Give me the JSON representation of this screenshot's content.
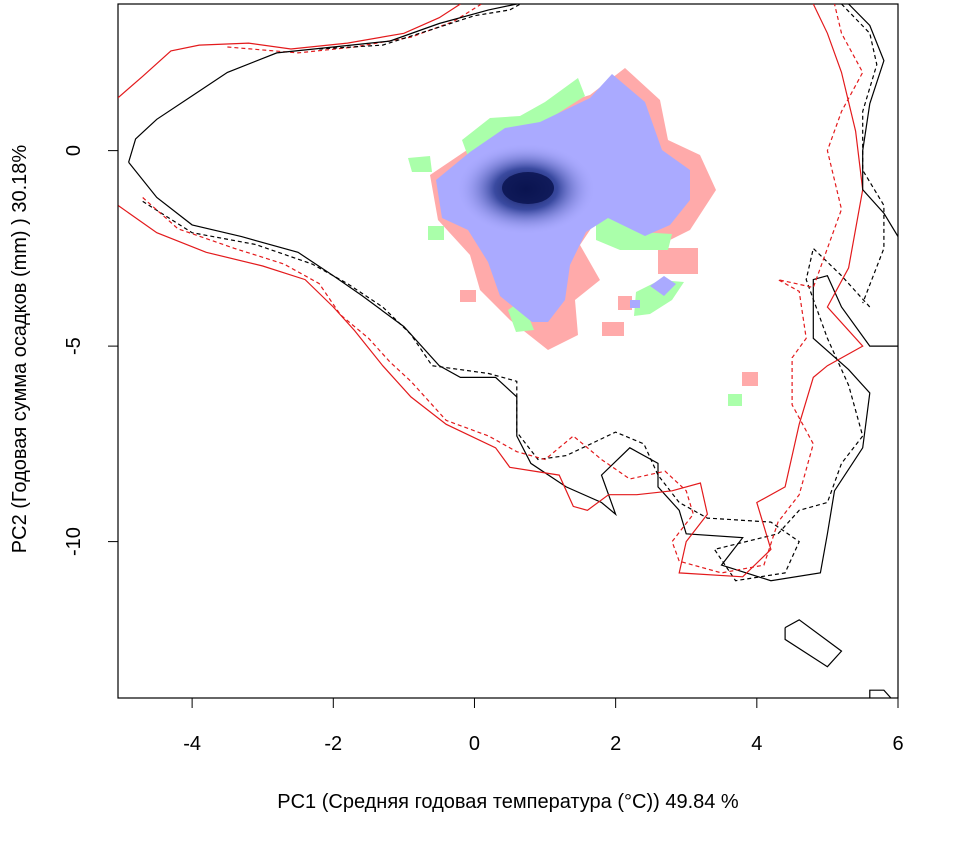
{
  "chart_data": {
    "type": "contour-density",
    "xlabel": "PC1 (Средняя годовая температура (°C)) 49.84 %",
    "ylabel": "PC2 (Годовая сумма осадков  (mm) ) 30.18%",
    "xlim": [
      -5.05,
      6.0
    ],
    "ylim": [
      -14.0,
      3.75
    ],
    "x_ticks": [
      -4,
      -2,
      0,
      2,
      4,
      6
    ],
    "y_ticks": [
      0,
      -5,
      -10
    ],
    "x_tick_labels": [
      "-4",
      "-2",
      "0",
      "2",
      "4",
      "6"
    ],
    "y_tick_labels": [
      "0",
      "-5",
      "-10"
    ],
    "colors": {
      "red": "#e31a1c",
      "black": "#000000",
      "pink": "#ffaaaa",
      "green": "#aaffaa",
      "blue": "#aaaaff",
      "density_core": "#0a1450"
    },
    "series": [
      {
        "color": "red",
        "dash": "solid",
        "points": [
          [
            -5.05,
            1.35
          ],
          [
            -4.7,
            1.9
          ],
          [
            -4.3,
            2.55
          ],
          [
            -3.9,
            2.7
          ],
          [
            -3.2,
            2.75
          ],
          [
            -2.6,
            2.6
          ],
          [
            -1.8,
            2.75
          ],
          [
            -1.0,
            3.0
          ],
          [
            -0.5,
            3.4
          ],
          [
            -0.2,
            3.75
          ]
        ]
      },
      {
        "color": "red",
        "dash": "dashed",
        "points": [
          [
            -3.5,
            2.65
          ],
          [
            -2.5,
            2.5
          ],
          [
            -1.7,
            2.65
          ],
          [
            -0.9,
            2.9
          ],
          [
            -0.3,
            3.3
          ],
          [
            0.1,
            3.75
          ]
        ]
      },
      {
        "color": "black",
        "dash": "solid",
        "points": [
          [
            -4.9,
            -0.3
          ],
          [
            -4.8,
            0.3
          ],
          [
            -4.5,
            0.8
          ],
          [
            -4.0,
            1.4
          ],
          [
            -3.5,
            2.0
          ],
          [
            -2.8,
            2.5
          ],
          [
            -2.0,
            2.65
          ],
          [
            -1.2,
            2.8
          ],
          [
            -0.5,
            3.25
          ],
          [
            0.2,
            3.6
          ],
          [
            0.6,
            3.75
          ]
        ]
      },
      {
        "color": "black",
        "dash": "dashed",
        "points": [
          [
            -2.2,
            2.6
          ],
          [
            -1.3,
            2.7
          ],
          [
            -0.6,
            3.1
          ],
          [
            0.0,
            3.45
          ],
          [
            0.5,
            3.6
          ],
          [
            0.65,
            3.75
          ]
        ]
      },
      {
        "color": "black",
        "dash": "solid",
        "points": [
          [
            -4.9,
            -0.3
          ],
          [
            -4.5,
            -1.2
          ],
          [
            -4.0,
            -1.9
          ],
          [
            -3.3,
            -2.2
          ],
          [
            -2.5,
            -2.6
          ],
          [
            -2.0,
            -3.2
          ],
          [
            -1.6,
            -3.7
          ],
          [
            -1.0,
            -4.5
          ],
          [
            -0.5,
            -5.5
          ],
          [
            -0.2,
            -5.8
          ],
          [
            0.3,
            -5.8
          ],
          [
            0.6,
            -6.3
          ],
          [
            0.6,
            -7.3
          ],
          [
            0.8,
            -8.0
          ],
          [
            1.3,
            -8.6
          ],
          [
            1.8,
            -9.0
          ],
          [
            2.0,
            -9.3
          ],
          [
            1.8,
            -8.3
          ],
          [
            2.2,
            -7.6
          ],
          [
            2.6,
            -8.0
          ],
          [
            2.6,
            -8.6
          ],
          [
            2.9,
            -9.2
          ],
          [
            3.0,
            -9.8
          ],
          [
            3.8,
            -9.9
          ],
          [
            3.5,
            -10.6
          ],
          [
            4.2,
            -11.0
          ],
          [
            4.9,
            -10.8
          ],
          [
            5.0,
            -9.8
          ],
          [
            5.1,
            -8.7
          ],
          [
            5.5,
            -7.6
          ],
          [
            5.6,
            -6.2
          ],
          [
            5.3,
            -5.6
          ],
          [
            4.8,
            -4.8
          ],
          [
            4.8,
            -3.3
          ],
          [
            5.0,
            -3.2
          ],
          [
            5.2,
            -4.0
          ],
          [
            5.6,
            -5.0
          ],
          [
            6.0,
            -5.0
          ]
        ]
      },
      {
        "color": "black",
        "dash": "dashed",
        "points": [
          [
            -4.7,
            -1.3
          ],
          [
            -4.0,
            -2.1
          ],
          [
            -3.1,
            -2.4
          ],
          [
            -2.3,
            -2.9
          ],
          [
            -1.8,
            -3.4
          ],
          [
            -1.3,
            -4.0
          ],
          [
            -0.9,
            -4.7
          ],
          [
            -0.6,
            -5.5
          ],
          [
            0.2,
            -5.7
          ],
          [
            0.6,
            -5.9
          ],
          [
            0.6,
            -7.2
          ],
          [
            0.9,
            -7.9
          ],
          [
            1.3,
            -7.8
          ],
          [
            2.0,
            -7.2
          ],
          [
            2.4,
            -7.5
          ],
          [
            2.6,
            -8.3
          ],
          [
            2.9,
            -9.0
          ],
          [
            3.3,
            -9.4
          ],
          [
            4.2,
            -9.5
          ],
          [
            4.6,
            -10.0
          ],
          [
            4.4,
            -10.8
          ],
          [
            3.7,
            -11.0
          ],
          [
            3.4,
            -10.2
          ],
          [
            4.3,
            -9.8
          ],
          [
            4.6,
            -9.2
          ],
          [
            5.0,
            -9.0
          ],
          [
            5.2,
            -8.0
          ],
          [
            5.5,
            -7.3
          ],
          [
            5.3,
            -6.0
          ],
          [
            5.0,
            -4.8
          ],
          [
            4.7,
            -3.3
          ],
          [
            4.8,
            -2.5
          ],
          [
            5.2,
            -3.2
          ],
          [
            5.6,
            -4.0
          ]
        ]
      },
      {
        "color": "red",
        "dash": "solid",
        "points": [
          [
            -5.05,
            -1.4
          ],
          [
            -4.5,
            -2.1
          ],
          [
            -3.8,
            -2.6
          ],
          [
            -3.0,
            -2.95
          ],
          [
            -2.4,
            -3.3
          ],
          [
            -2.0,
            -4.0
          ],
          [
            -1.7,
            -4.6
          ],
          [
            -1.3,
            -5.5
          ],
          [
            -0.9,
            -6.3
          ],
          [
            -0.4,
            -7.0
          ],
          [
            0.3,
            -7.6
          ],
          [
            0.5,
            -8.1
          ],
          [
            1.2,
            -8.3
          ],
          [
            1.4,
            -9.1
          ],
          [
            1.6,
            -9.2
          ],
          [
            1.9,
            -8.8
          ],
          [
            2.3,
            -8.8
          ],
          [
            2.8,
            -8.7
          ],
          [
            3.2,
            -8.5
          ],
          [
            3.3,
            -9.3
          ],
          [
            3.0,
            -10.0
          ],
          [
            2.9,
            -10.8
          ],
          [
            3.8,
            -10.9
          ],
          [
            4.2,
            -10.2
          ],
          [
            4.0,
            -9.0
          ],
          [
            4.4,
            -8.6
          ],
          [
            4.6,
            -7.0
          ],
          [
            4.8,
            -5.8
          ],
          [
            5.0,
            -5.5
          ],
          [
            5.5,
            -5.0
          ],
          [
            5.0,
            -4.0
          ],
          [
            5.3,
            -3.0
          ],
          [
            5.5,
            -1.0
          ],
          [
            5.4,
            0.5
          ],
          [
            5.2,
            2.0
          ],
          [
            5.0,
            3.0
          ],
          [
            4.8,
            3.75
          ]
        ]
      },
      {
        "color": "red",
        "dash": "dashed",
        "points": [
          [
            -4.7,
            -1.2
          ],
          [
            -4.2,
            -2.0
          ],
          [
            -3.4,
            -2.5
          ],
          [
            -2.7,
            -2.9
          ],
          [
            -2.2,
            -3.4
          ],
          [
            -1.9,
            -4.2
          ],
          [
            -1.5,
            -4.8
          ],
          [
            -1.2,
            -5.4
          ],
          [
            -0.9,
            -5.9
          ],
          [
            -0.4,
            -6.9
          ],
          [
            0.2,
            -7.3
          ],
          [
            0.6,
            -7.7
          ],
          [
            1.0,
            -7.9
          ],
          [
            1.4,
            -7.3
          ],
          [
            1.8,
            -7.9
          ],
          [
            2.2,
            -8.4
          ],
          [
            2.7,
            -8.2
          ],
          [
            3.0,
            -8.7
          ],
          [
            3.1,
            -9.3
          ],
          [
            2.8,
            -10.0
          ],
          [
            2.9,
            -10.5
          ],
          [
            3.5,
            -10.8
          ],
          [
            4.1,
            -10.6
          ],
          [
            4.3,
            -9.5
          ],
          [
            4.6,
            -8.8
          ],
          [
            4.8,
            -7.5
          ],
          [
            4.5,
            -6.5
          ],
          [
            4.5,
            -5.3
          ],
          [
            4.7,
            -4.8
          ],
          [
            4.6,
            -3.6
          ],
          [
            4.3,
            -3.3
          ],
          [
            4.8,
            -3.5
          ],
          [
            5.0,
            -2.5
          ],
          [
            5.2,
            -1.5
          ],
          [
            5.0,
            0.0
          ],
          [
            5.2,
            1.0
          ],
          [
            5.5,
            2.0
          ],
          [
            5.2,
            3.0
          ],
          [
            5.1,
            3.75
          ]
        ]
      },
      {
        "color": "black",
        "dash": "solid",
        "points": [
          [
            5.3,
            3.75
          ],
          [
            5.6,
            3.2
          ],
          [
            5.8,
            2.3
          ],
          [
            5.6,
            1.2
          ],
          [
            5.5,
            0.0
          ],
          [
            5.5,
            -1.0
          ],
          [
            5.8,
            -1.6
          ],
          [
            6.0,
            -2.2
          ]
        ]
      },
      {
        "color": "black",
        "dash": "dashed",
        "points": [
          [
            5.2,
            3.75
          ],
          [
            5.6,
            3.0
          ],
          [
            5.7,
            2.2
          ],
          [
            5.5,
            1.0
          ],
          [
            5.5,
            -0.5
          ],
          [
            5.8,
            -1.4
          ],
          [
            5.8,
            -2.5
          ],
          [
            5.5,
            -3.9
          ]
        ]
      },
      {
        "color": "black",
        "dash": "solid",
        "points": [
          [
            4.4,
            -12.2
          ],
          [
            4.6,
            -12.0
          ],
          [
            5.2,
            -12.8
          ],
          [
            5.0,
            -13.2
          ],
          [
            4.4,
            -12.5
          ],
          [
            4.4,
            -12.2
          ]
        ]
      },
      {
        "color": "black",
        "dash": "solid",
        "points": [
          [
            5.6,
            -14.0
          ],
          [
            5.6,
            -13.8
          ],
          [
            5.8,
            -13.8
          ],
          [
            5.9,
            -14.0
          ]
        ]
      }
    ]
  }
}
